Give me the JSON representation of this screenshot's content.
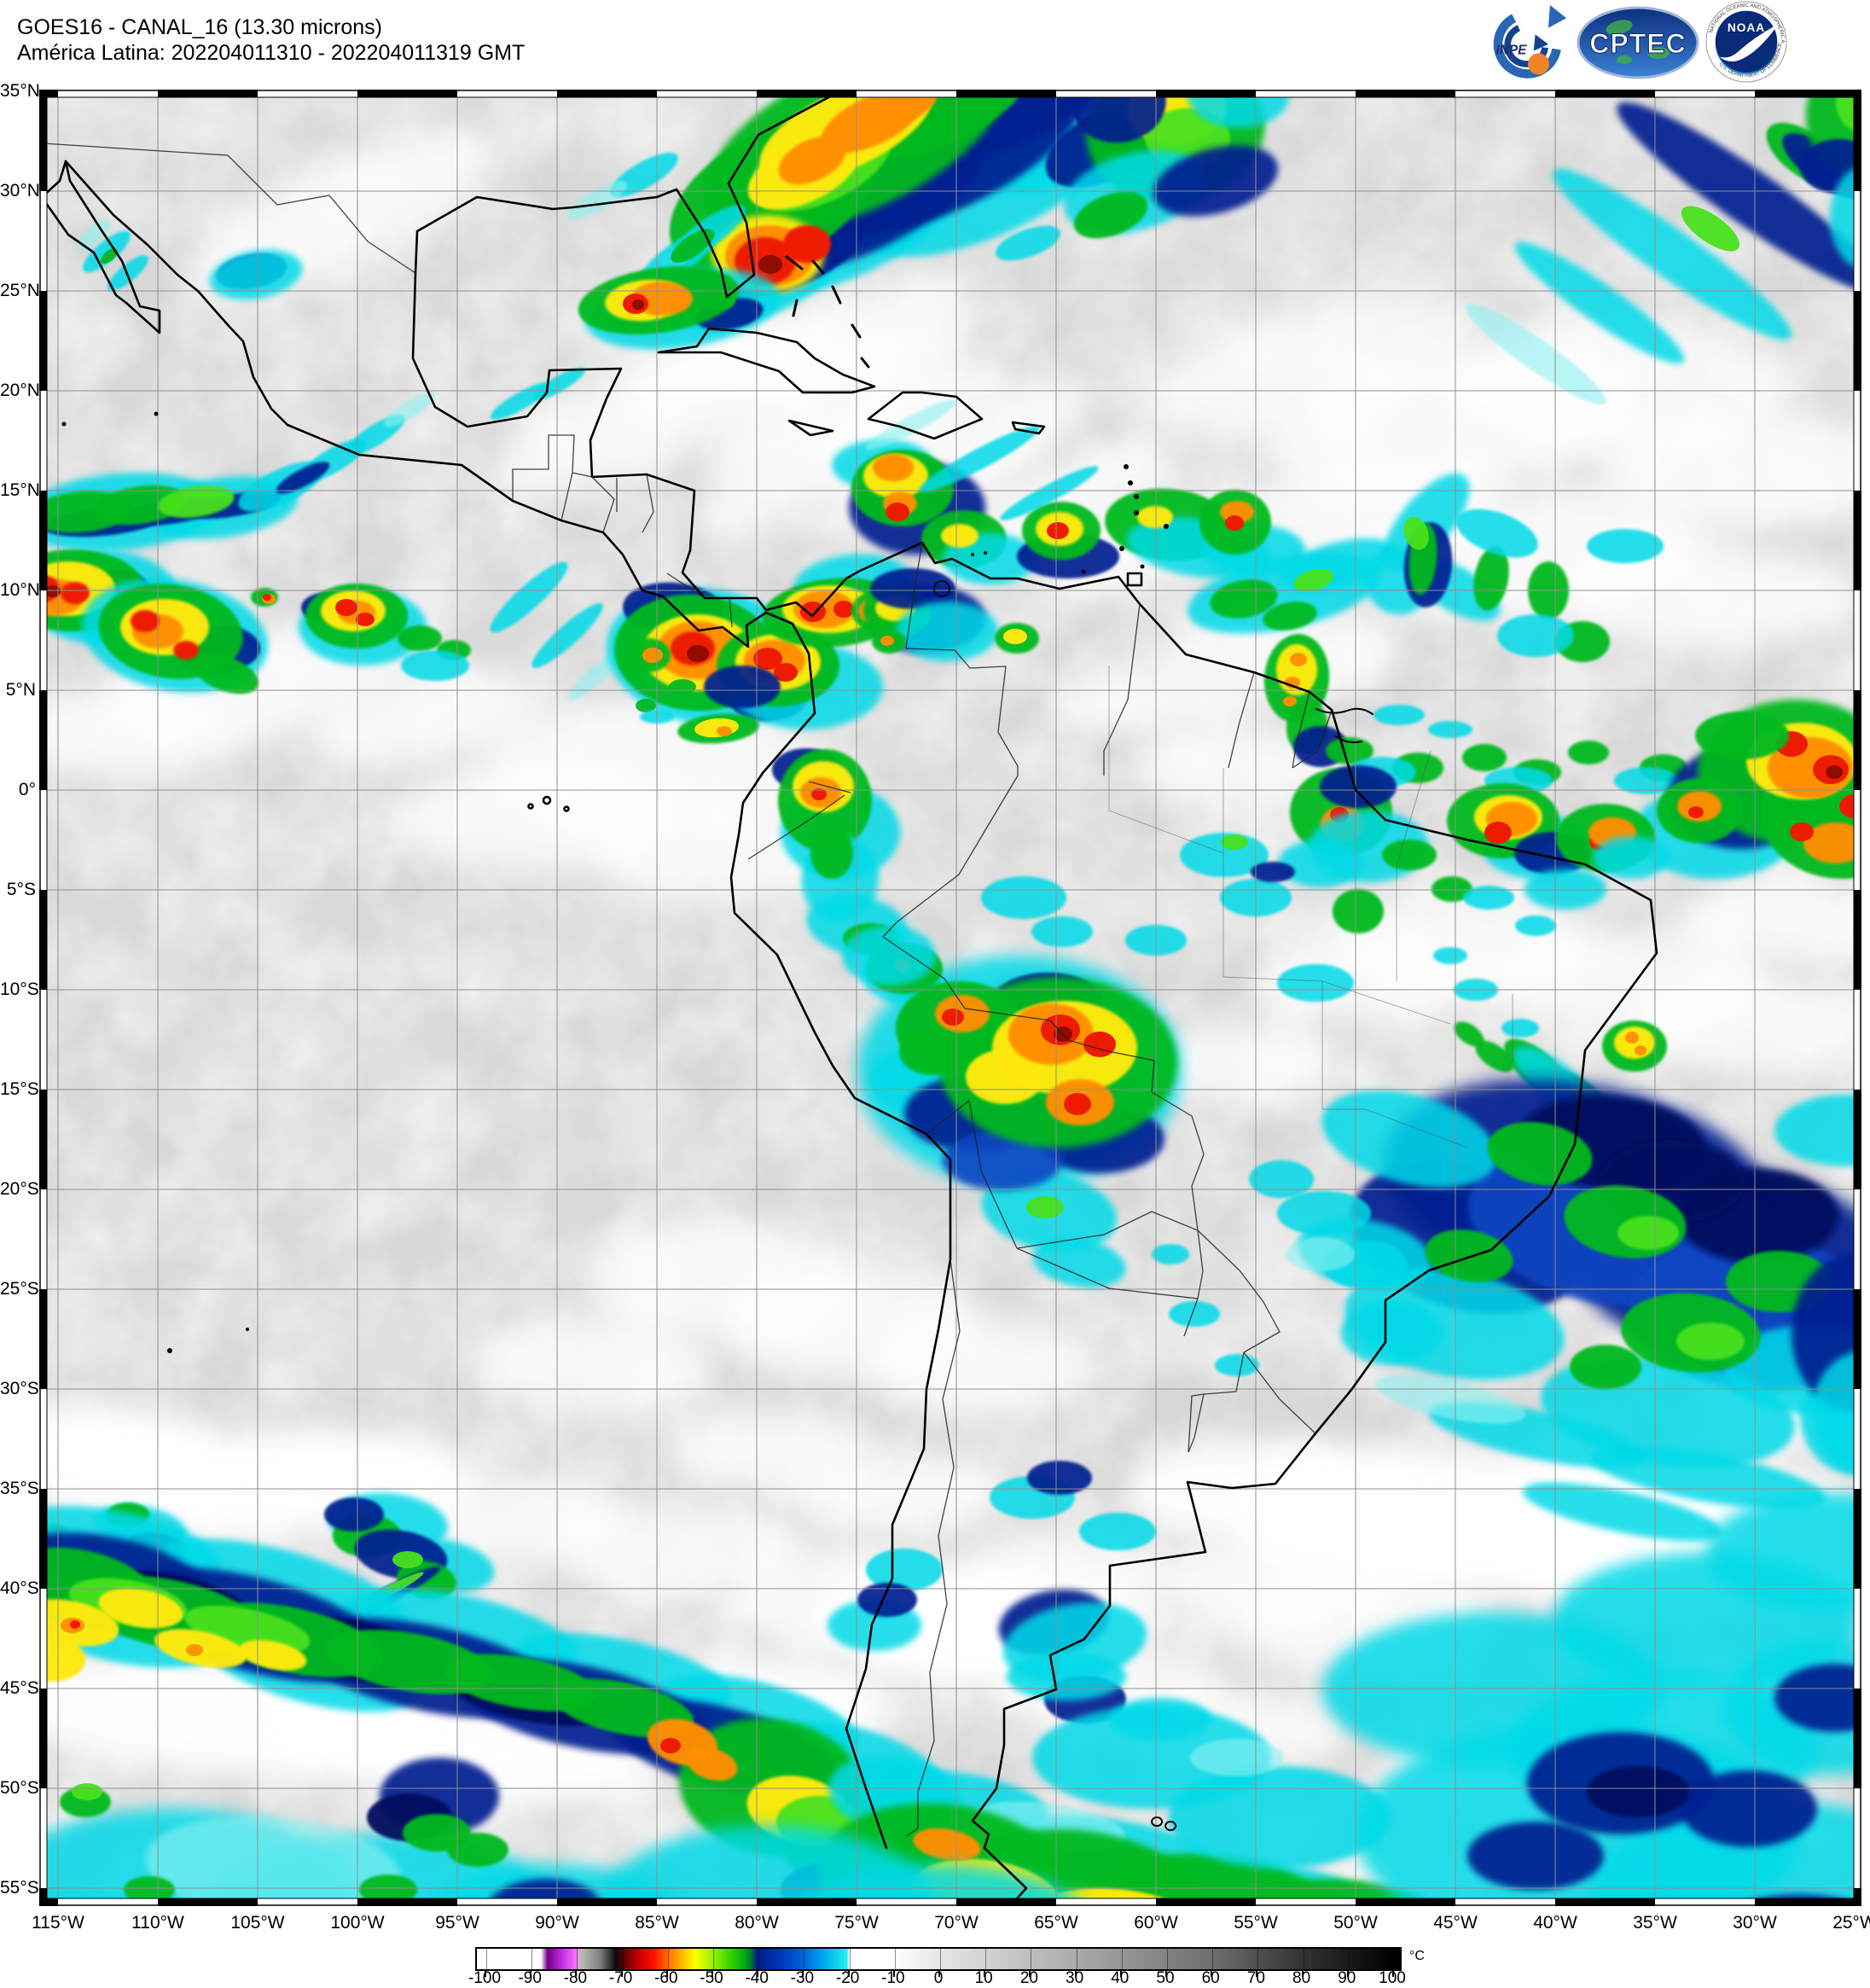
{
  "header": {
    "title_line1": "GOES16 - CANAL_16 (13.30 microns)",
    "title_line2": "América Latina: 202204011310 - 202204011319 GMT"
  },
  "logos": {
    "inpe_label": "INPE",
    "cptec_label": "CPTEC",
    "noaa_label": "NOAA",
    "noaa_ring_top": "NATIONAL OCEANIC AND ATMOSPHERIC ADMINISTRATION",
    "noaa_ring_bottom": "U.S. DEPARTMENT OF COMMERCE"
  },
  "map": {
    "lat_labels": [
      "35°N",
      "30°N",
      "25°N",
      "20°N",
      "15°N",
      "10°N",
      "5°N",
      "0°",
      "5°S",
      "10°S",
      "15°S",
      "20°S",
      "25°S",
      "30°S",
      "35°S",
      "40°S",
      "45°S",
      "50°S",
      "55°S"
    ],
    "lon_labels": [
      "115°W",
      "110°W",
      "105°W",
      "100°W",
      "95°W",
      "90°W",
      "85°W",
      "80°W",
      "75°W",
      "70°W",
      "65°W",
      "60°W",
      "55°W",
      "50°W",
      "45°W",
      "40°W",
      "35°W",
      "30°W",
      "25°W"
    ],
    "grid_interval_degrees": 5
  },
  "colorbar": {
    "unit": "°C",
    "tick_labels": [
      "-100",
      "-90",
      "-80",
      "-70",
      "-60",
      "-50",
      "-40",
      "-30",
      "-20",
      "-10",
      "0",
      "10",
      "20",
      "30",
      "40",
      "50",
      "60",
      "70",
      "80",
      "90",
      "100"
    ],
    "stops": [
      {
        "t": -100,
        "c": "#ffffff"
      },
      {
        "t": -88,
        "c": "#ffffff"
      },
      {
        "t": -86.5,
        "c": "#73008c"
      },
      {
        "t": -83,
        "c": "#c832e6"
      },
      {
        "t": -80,
        "c": "#ff78ff"
      },
      {
        "t": -79.5,
        "c": "#bebebe"
      },
      {
        "t": -75,
        "c": "#828282"
      },
      {
        "t": -71.5,
        "c": "#0a0a0a"
      },
      {
        "t": -69,
        "c": "#780000"
      },
      {
        "t": -66,
        "c": "#d20000"
      },
      {
        "t": -63,
        "c": "#ff1400"
      },
      {
        "t": -60,
        "c": "#ff6e00"
      },
      {
        "t": -57,
        "c": "#ffb400"
      },
      {
        "t": -54,
        "c": "#ffff00"
      },
      {
        "t": -50,
        "c": "#96f000"
      },
      {
        "t": -46,
        "c": "#32d200"
      },
      {
        "t": -43,
        "c": "#00aa14"
      },
      {
        "t": -41.5,
        "c": "#006e3c"
      },
      {
        "t": -40.5,
        "c": "#001e82"
      },
      {
        "t": -36,
        "c": "#0032b4"
      },
      {
        "t": -30,
        "c": "#0064dc"
      },
      {
        "t": -25,
        "c": "#00b4f0"
      },
      {
        "t": -20.5,
        "c": "#28f0f0"
      },
      {
        "t": -20,
        "c": "#ffffff"
      },
      {
        "t": -10,
        "c": "#ffffff"
      },
      {
        "t": 0,
        "c": "#e6e6e6"
      },
      {
        "t": 10,
        "c": "#d2d2d2"
      },
      {
        "t": 20,
        "c": "#bebebe"
      },
      {
        "t": 30,
        "c": "#aaaaaa"
      },
      {
        "t": 40,
        "c": "#969696"
      },
      {
        "t": 50,
        "c": "#828282"
      },
      {
        "t": 60,
        "c": "#6e6e6e"
      },
      {
        "t": 70,
        "c": "#505050"
      },
      {
        "t": 80,
        "c": "#323232"
      },
      {
        "t": 90,
        "c": "#191919"
      },
      {
        "t": 100,
        "c": "#000000"
      }
    ]
  }
}
